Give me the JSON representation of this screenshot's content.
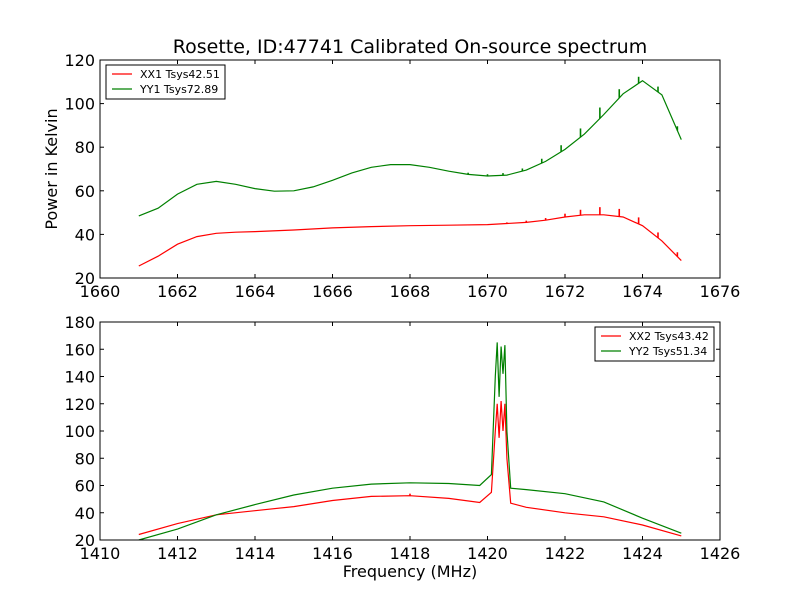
{
  "title": "Rosette, ID:47741 Calibrated On-source spectrum",
  "colors": {
    "xx": "#ff0000",
    "yy": "#008000"
  },
  "chart_data": [
    {
      "type": "line",
      "ylabel": "Power in Kelvin",
      "xlabel": "",
      "xlim": [
        1660,
        1676
      ],
      "ylim": [
        20,
        120
      ],
      "xticks": [
        "1660",
        "1662",
        "1664",
        "1666",
        "1668",
        "1670",
        "1672",
        "1674",
        "1676"
      ],
      "yticks": [
        "20",
        "40",
        "60",
        "80",
        "100",
        "120"
      ],
      "legend_position": "upper-left",
      "series": [
        {
          "name": "XX1 Tsys42.51",
          "color": "#ff0000",
          "x": [
            1661.0,
            1661.5,
            1662.0,
            1662.5,
            1663.0,
            1663.5,
            1664.0,
            1665.0,
            1666.0,
            1667.0,
            1668.0,
            1669.0,
            1670.0,
            1670.5,
            1671.0,
            1671.5,
            1672.0,
            1672.5,
            1673.0,
            1673.5,
            1674.0,
            1674.5,
            1675.0
          ],
          "y": [
            25.5,
            30,
            35.5,
            39,
            40.5,
            41,
            41.3,
            42,
            43,
            43.6,
            44,
            44.2,
            44.5,
            45,
            45.5,
            46.5,
            48,
            49,
            49,
            48,
            44,
            37,
            28
          ]
        },
        {
          "name": "YY1 Tsys72.89",
          "color": "#008000",
          "x": [
            1661.0,
            1661.5,
            1662.0,
            1662.5,
            1663.0,
            1663.5,
            1664.0,
            1664.5,
            1665.0,
            1665.5,
            1666.0,
            1666.5,
            1667.0,
            1667.5,
            1668.0,
            1668.5,
            1669.0,
            1669.5,
            1670.0,
            1670.5,
            1671.0,
            1671.5,
            1672.0,
            1672.5,
            1673.0,
            1673.5,
            1674.0,
            1674.5,
            1675.0
          ],
          "y": [
            48.5,
            52,
            58.5,
            63,
            64.3,
            63,
            61,
            59.8,
            60,
            61.8,
            64.8,
            68.2,
            70.8,
            72,
            72,
            70.8,
            69,
            67.5,
            66.8,
            67.2,
            69.5,
            73.5,
            79,
            86,
            95,
            104.5,
            110.5,
            104,
            83.5
          ]
        }
      ],
      "spikes": [
        {
          "series": 0,
          "x": [
            1670.5,
            1671.0,
            1671.5,
            1672.0,
            1672.4,
            1672.9,
            1673.4,
            1673.9,
            1674.4,
            1674.9
          ],
          "dy": [
            0.5,
            0.8,
            1,
            1.5,
            2.5,
            3.5,
            3.5,
            3,
            2.5,
            2
          ]
        },
        {
          "series": 1,
          "x": [
            1669.5,
            1670.0,
            1670.4,
            1670.9,
            1671.4,
            1671.9,
            1672.4,
            1672.9,
            1673.4,
            1673.9,
            1674.4,
            1674.9
          ],
          "dy": [
            0.8,
            0.8,
            1,
            1.2,
            2,
            3,
            4,
            5,
            4,
            3,
            2.5,
            2
          ]
        }
      ]
    },
    {
      "type": "line",
      "ylabel": "",
      "xlabel": "Frequency (MHz)",
      "xlim": [
        1410,
        1426
      ],
      "ylim": [
        20,
        180
      ],
      "xticks": [
        "1410",
        "1412",
        "1414",
        "1416",
        "1418",
        "1420",
        "1422",
        "1424",
        "1426"
      ],
      "yticks": [
        "20",
        "40",
        "60",
        "80",
        "100",
        "120",
        "140",
        "160",
        "180"
      ],
      "legend_position": "upper-right",
      "series": [
        {
          "name": "XX2 Tsys43.42",
          "color": "#ff0000",
          "x": [
            1411.0,
            1412.0,
            1413.0,
            1414.0,
            1415.0,
            1416.0,
            1417.0,
            1418.0,
            1419.0,
            1419.8,
            1420.1,
            1420.2,
            1420.25,
            1420.3,
            1420.35,
            1420.4,
            1420.45,
            1420.5,
            1420.6,
            1421.0,
            1422.0,
            1423.0,
            1424.0,
            1425.0
          ],
          "y": [
            24,
            32,
            38.5,
            41.5,
            44.5,
            49,
            52,
            52.5,
            50.5,
            47.5,
            55,
            100,
            120,
            95,
            122,
            100,
            120,
            80,
            47,
            44,
            40,
            37,
            31,
            23
          ]
        },
        {
          "name": "YY2 Tsys51.34",
          "color": "#008000",
          "x": [
            1411.0,
            1412.0,
            1413.0,
            1414.0,
            1415.0,
            1416.0,
            1417.0,
            1418.0,
            1419.0,
            1419.8,
            1420.1,
            1420.2,
            1420.25,
            1420.3,
            1420.35,
            1420.4,
            1420.45,
            1420.5,
            1420.6,
            1421.0,
            1422.0,
            1423.0,
            1424.0,
            1425.0
          ],
          "y": [
            20,
            28,
            38.5,
            46,
            53,
            58,
            61,
            62,
            61.5,
            60,
            68,
            140,
            165,
            125,
            162,
            142,
            163,
            100,
            58,
            57,
            54,
            48,
            36,
            25
          ]
        }
      ],
      "spikes": [
        {
          "series": 0,
          "x": [
            1418.0
          ],
          "dy": [
            1.5
          ]
        }
      ]
    }
  ]
}
